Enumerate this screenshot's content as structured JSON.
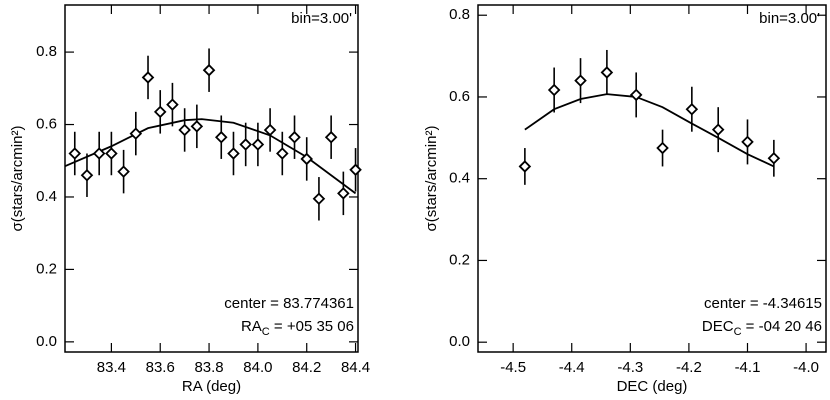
{
  "chart_data": [
    {
      "type": "scatter",
      "x_label": "RA (deg)",
      "y_label": "σ(stars/arcmin²)",
      "bin_label": "bin=3.00'",
      "center_label": "center = 83.774361",
      "coord_label": {
        "main": "RA",
        "sub": "C",
        "rest": " = +05 35 06"
      },
      "x": [
        83.25,
        83.3,
        83.35,
        83.4,
        83.45,
        83.5,
        83.55,
        83.6,
        83.65,
        83.7,
        83.75,
        83.8,
        83.85,
        83.9,
        83.95,
        84.0,
        84.05,
        84.1,
        84.15,
        84.2,
        84.25,
        84.3,
        84.35,
        84.4
      ],
      "values": [
        0.52,
        0.46,
        0.52,
        0.52,
        0.47,
        0.575,
        0.73,
        0.635,
        0.655,
        0.585,
        0.595,
        0.75,
        0.565,
        0.52,
        0.545,
        0.545,
        0.585,
        0.52,
        0.565,
        0.505,
        0.395,
        0.565,
        0.41,
        0.475
      ],
      "errors": [
        0.06,
        0.06,
        0.06,
        0.06,
        0.06,
        0.06,
        0.06,
        0.06,
        0.06,
        0.06,
        0.06,
        0.06,
        0.06,
        0.06,
        0.06,
        0.06,
        0.06,
        0.06,
        0.06,
        0.06,
        0.06,
        0.06,
        0.06,
        0.06
      ],
      "fit": {
        "x": [
          83.21,
          83.4,
          83.55,
          83.7,
          83.77,
          83.9,
          84.05,
          84.2,
          84.4
        ],
        "y": [
          0.485,
          0.54,
          0.59,
          0.612,
          0.615,
          0.605,
          0.57,
          0.51,
          0.41
        ]
      },
      "xlim": [
        83.21,
        84.41
      ],
      "ylim": [
        -0.028,
        0.93
      ],
      "xticks": [
        83.4,
        83.6,
        83.8,
        {
          "value": 84,
          "label": "84.0"
        },
        84.2,
        84.4
      ],
      "yticks": [
        {
          "value": 0,
          "label": "0.0"
        },
        0.2,
        0.4,
        0.6,
        0.8
      ],
      "color": "#000000"
    },
    {
      "type": "scatter",
      "x_label": "DEC (deg)",
      "y_label": "σ(stars/arcmin²)",
      "bin_label": "bin=3.00'",
      "center_label": "center = -4.34615",
      "coord_label": {
        "main": "DEC",
        "sub": "C",
        "rest": " = -04 20 46"
      },
      "x": [
        -4.48,
        -4.43,
        -4.385,
        -4.34,
        -4.29,
        -4.245,
        -4.195,
        -4.15,
        -4.1,
        -4.055
      ],
      "values": [
        0.43,
        0.617,
        0.64,
        0.66,
        0.605,
        0.475,
        0.57,
        0.52,
        0.49,
        0.45
      ],
      "errors": [
        0.045,
        0.055,
        0.055,
        0.055,
        0.055,
        0.045,
        0.055,
        0.055,
        0.055,
        0.045
      ],
      "fit": {
        "x": [
          -4.48,
          -4.43,
          -4.385,
          -4.34,
          -4.29,
          -4.245,
          -4.195,
          -4.15,
          -4.1,
          -4.055
        ],
        "y": [
          0.52,
          0.57,
          0.595,
          0.607,
          0.6,
          0.575,
          0.535,
          0.5,
          0.46,
          0.43
        ]
      },
      "xlim": [
        -4.56,
        -3.966
      ],
      "ylim": [
        -0.024,
        0.825
      ],
      "xticks": [
        -4.5,
        -4.4,
        -4.3,
        -4.2,
        -4.1,
        {
          "value": -4,
          "label": "-4.0"
        }
      ],
      "yticks": [
        {
          "value": 0,
          "label": "0.0"
        },
        0.2,
        0.4,
        0.6,
        0.8
      ],
      "color": "#000000"
    }
  ]
}
